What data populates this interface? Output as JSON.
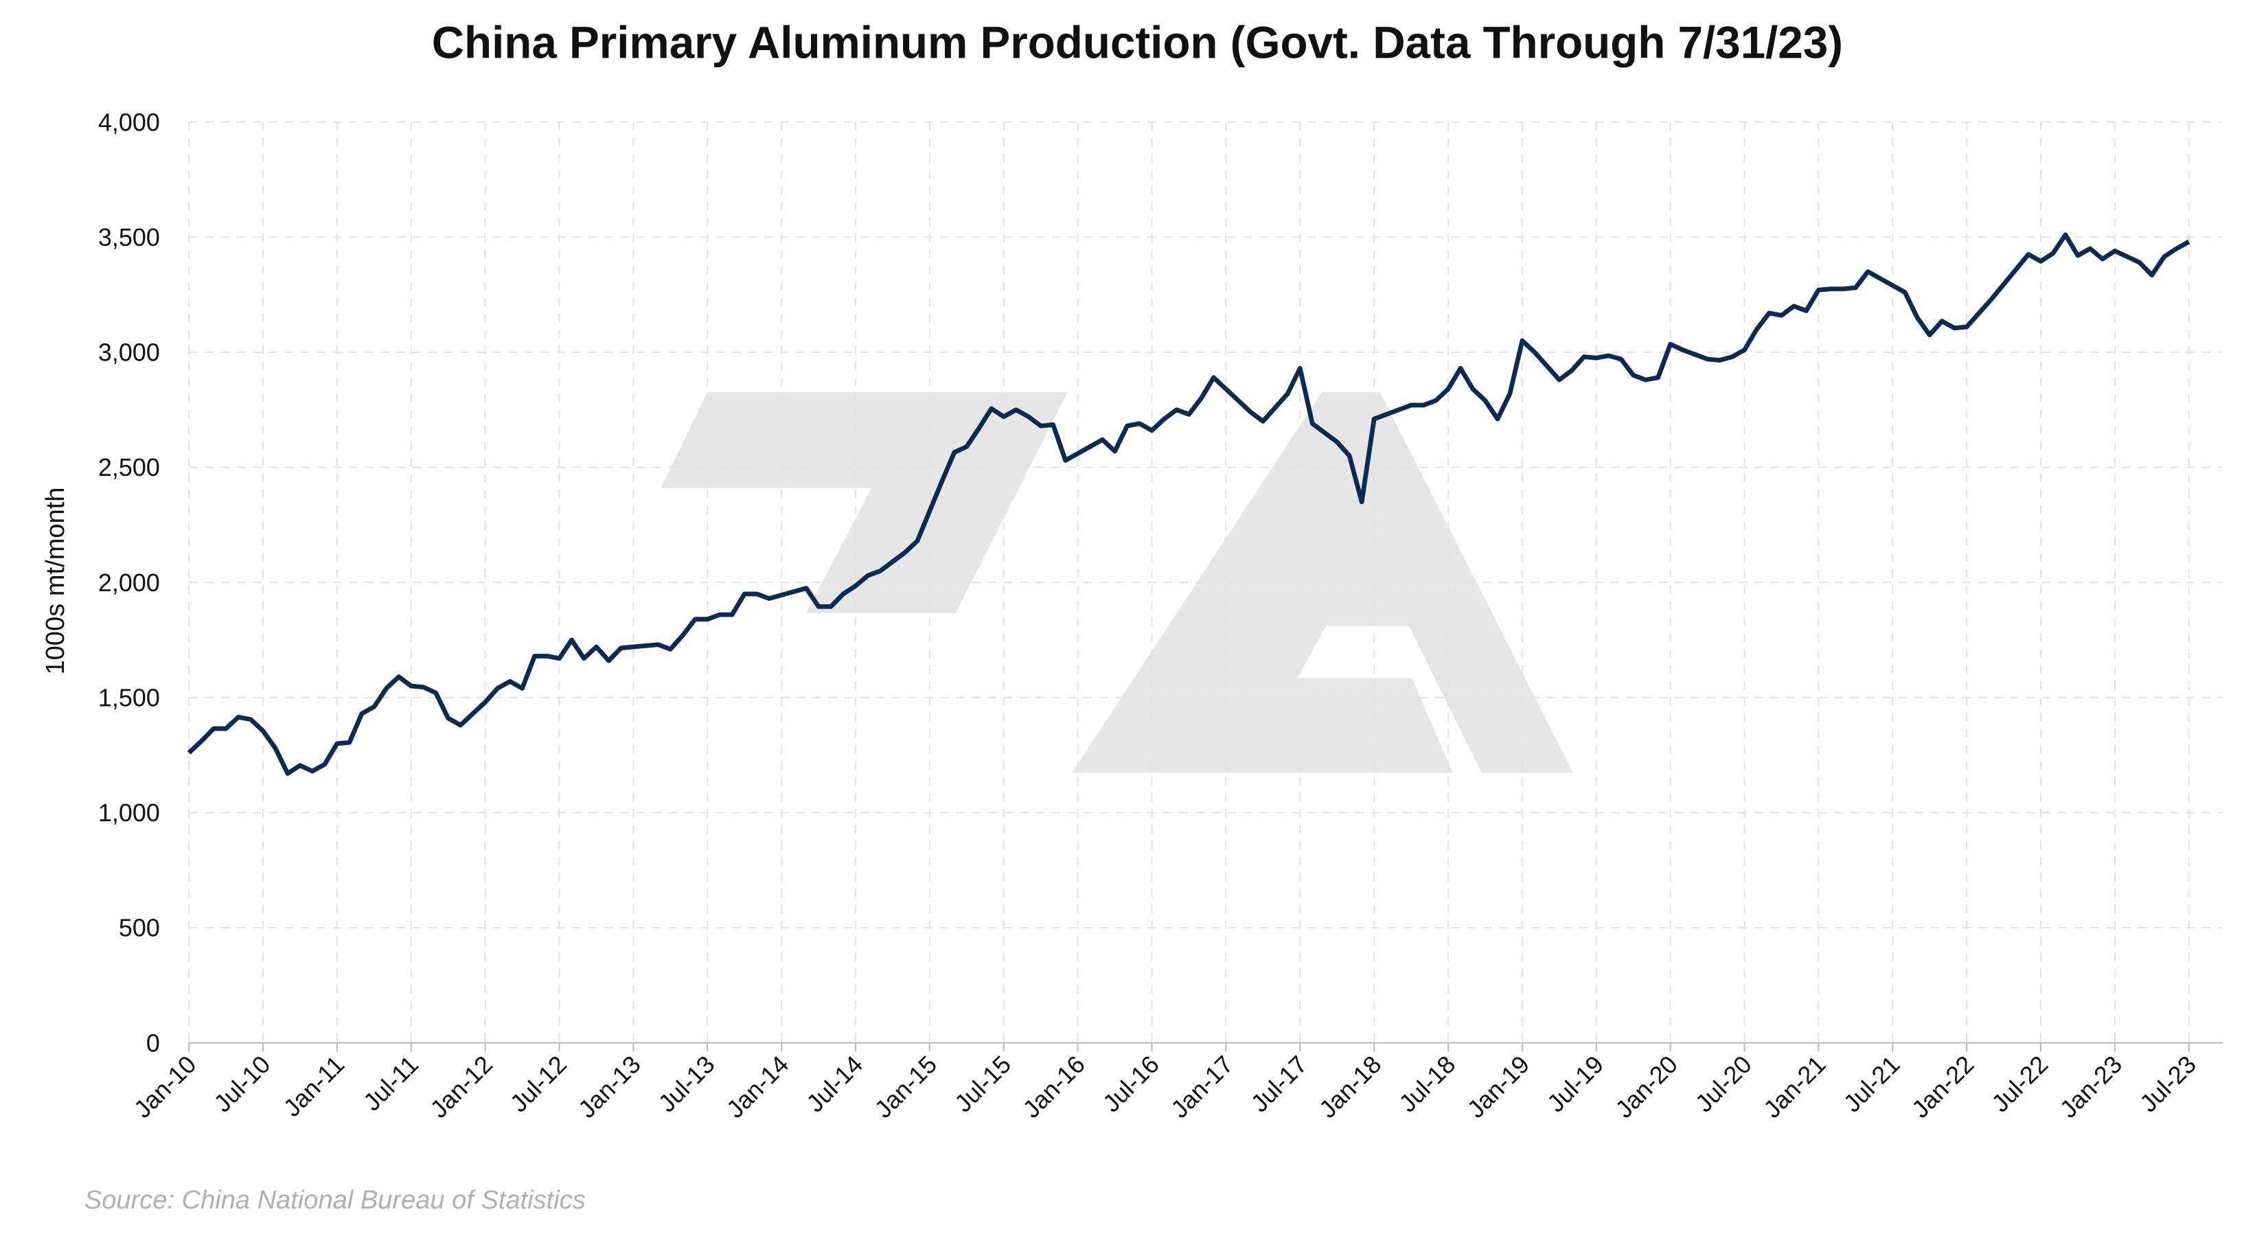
{
  "chart_data": {
    "type": "line",
    "title": "China Primary Aluminum Production (Govt. Data Through 7/31/23)",
    "y_label": "1000s mt/month",
    "source": "Source: China National Bureau of Statistics",
    "ylim": [
      0,
      4000
    ],
    "yticks": [
      0,
      500,
      {
        "value": 1000,
        "label": "1,000"
      },
      {
        "value": 1500,
        "label": "1,500"
      },
      {
        "value": 2000,
        "label": "2,000"
      },
      {
        "value": 2500,
        "label": "2,500"
      },
      {
        "value": 3000,
        "label": "3,000"
      },
      {
        "value": 3500,
        "label": "3,500"
      },
      {
        "value": 4000,
        "label": "4,000"
      }
    ],
    "grid": true,
    "categories": [
      "Jan-10",
      null,
      null,
      null,
      null,
      null,
      "Jul-10",
      null,
      null,
      null,
      null,
      null,
      "Jan-11",
      null,
      null,
      null,
      null,
      null,
      "Jul-11",
      null,
      null,
      null,
      null,
      null,
      "Jan-12",
      null,
      null,
      null,
      null,
      null,
      "Jul-12",
      null,
      null,
      null,
      null,
      null,
      "Jan-13",
      null,
      null,
      null,
      null,
      null,
      "Jul-13",
      null,
      null,
      null,
      null,
      null,
      "Jan-14",
      null,
      null,
      null,
      null,
      null,
      "Jul-14",
      null,
      null,
      null,
      null,
      null,
      "Jan-15",
      null,
      null,
      null,
      null,
      null,
      "Jul-15",
      null,
      null,
      null,
      null,
      null,
      "Jan-16",
      null,
      null,
      null,
      null,
      null,
      "Jul-16",
      null,
      null,
      null,
      null,
      null,
      "Jan-17",
      null,
      null,
      null,
      null,
      null,
      "Jul-17",
      null,
      null,
      null,
      null,
      null,
      "Jan-18",
      null,
      null,
      null,
      null,
      null,
      "Jul-18",
      null,
      null,
      null,
      null,
      null,
      "Jan-19",
      null,
      null,
      null,
      null,
      null,
      "Jul-19",
      null,
      null,
      null,
      null,
      null,
      "Jan-20",
      null,
      null,
      null,
      null,
      null,
      "Jul-20",
      null,
      null,
      null,
      null,
      null,
      "Jan-21",
      null,
      null,
      null,
      null,
      null,
      "Jul-21",
      null,
      null,
      null,
      null,
      null,
      "Jan-22",
      null,
      null,
      null,
      null,
      null,
      "Jul-22",
      null,
      null,
      null,
      null,
      null,
      "Jan-23",
      null,
      null,
      null,
      null,
      null,
      "Jul-23"
    ],
    "series": [
      {
        "name": "China Primary Aluminum Production",
        "color": "#0d2b52",
        "values": [
          1260,
          1310,
          1365,
          1365,
          1415,
          1405,
          1355,
          1280,
          1170,
          1205,
          1180,
          1210,
          1300,
          1305,
          1430,
          1460,
          1540,
          1590,
          1550,
          1545,
          1520,
          1410,
          1380,
          1430,
          1480,
          1540,
          1570,
          1540,
          1680,
          1680,
          1670,
          1750,
          1670,
          1720,
          1660,
          1715,
          1720,
          1725,
          1730,
          1710,
          1770,
          1840,
          1840,
          1860,
          1860,
          1950,
          1950,
          1930,
          1945,
          1960,
          1975,
          1895,
          1895,
          1950,
          1985,
          2030,
          2050,
          2090,
          2130,
          2180,
          2310,
          2440,
          2565,
          2590,
          2670,
          2755,
          2720,
          2750,
          2720,
          2680,
          2685,
          2530,
          2560,
          2590,
          2620,
          2570,
          2680,
          2690,
          2660,
          2710,
          2750,
          2730,
          2800,
          2890,
          2840,
          2790,
          2740,
          2700,
          2760,
          2820,
          2930,
          2690,
          2650,
          2610,
          2550,
          2350,
          2710,
          2730,
          2750,
          2770,
          2770,
          2790,
          2840,
          2930,
          2840,
          2790,
          2710,
          2820,
          3050,
          3000,
          2940,
          2880,
          2920,
          2980,
          2975,
          2985,
          2970,
          2900,
          2880,
          2890,
          3035,
          3010,
          2990,
          2970,
          2965,
          2980,
          3010,
          3100,
          3170,
          3160,
          3200,
          3180,
          3270,
          3275,
          3275,
          3280,
          3350,
          3320,
          3290,
          3260,
          3150,
          3075,
          3135,
          3105,
          3110,
          3170,
          3230,
          3295,
          3360,
          3425,
          3395,
          3430,
          3510,
          3420,
          3450,
          3405,
          3440,
          3415,
          3390,
          3335,
          3415,
          3450,
          3480
        ]
      }
    ]
  }
}
